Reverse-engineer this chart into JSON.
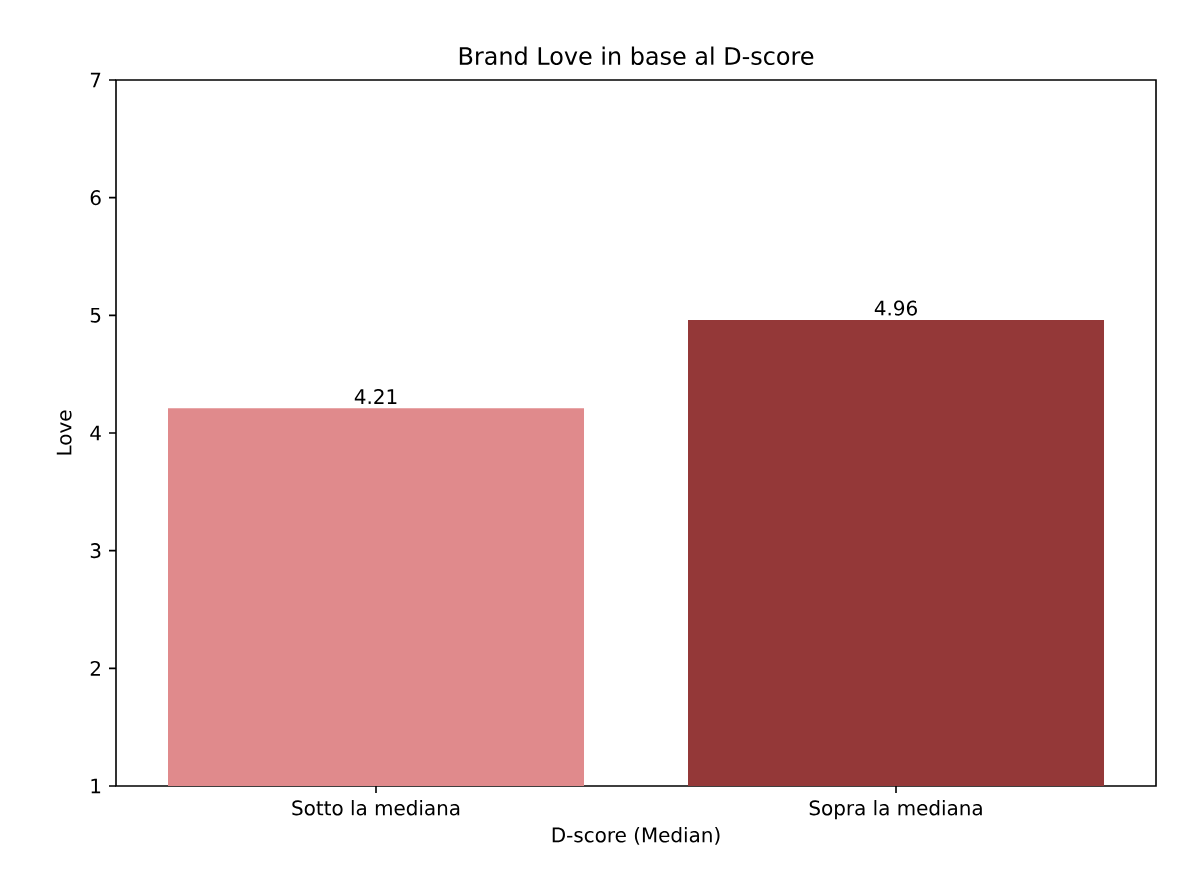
{
  "chart_data": {
    "type": "bar",
    "title": "Brand Love in base al D-score",
    "xlabel": "D-score (Median)",
    "ylabel": "Love",
    "categories": [
      "Sotto la mediana",
      "Sopra la mediana"
    ],
    "values": [
      4.21,
      4.96
    ],
    "colors": [
      "#e08a8c",
      "#943838"
    ],
    "ylim": [
      1,
      7
    ],
    "yticks": [
      1,
      2,
      3,
      4,
      5,
      6,
      7
    ],
    "data_labels": true
  }
}
